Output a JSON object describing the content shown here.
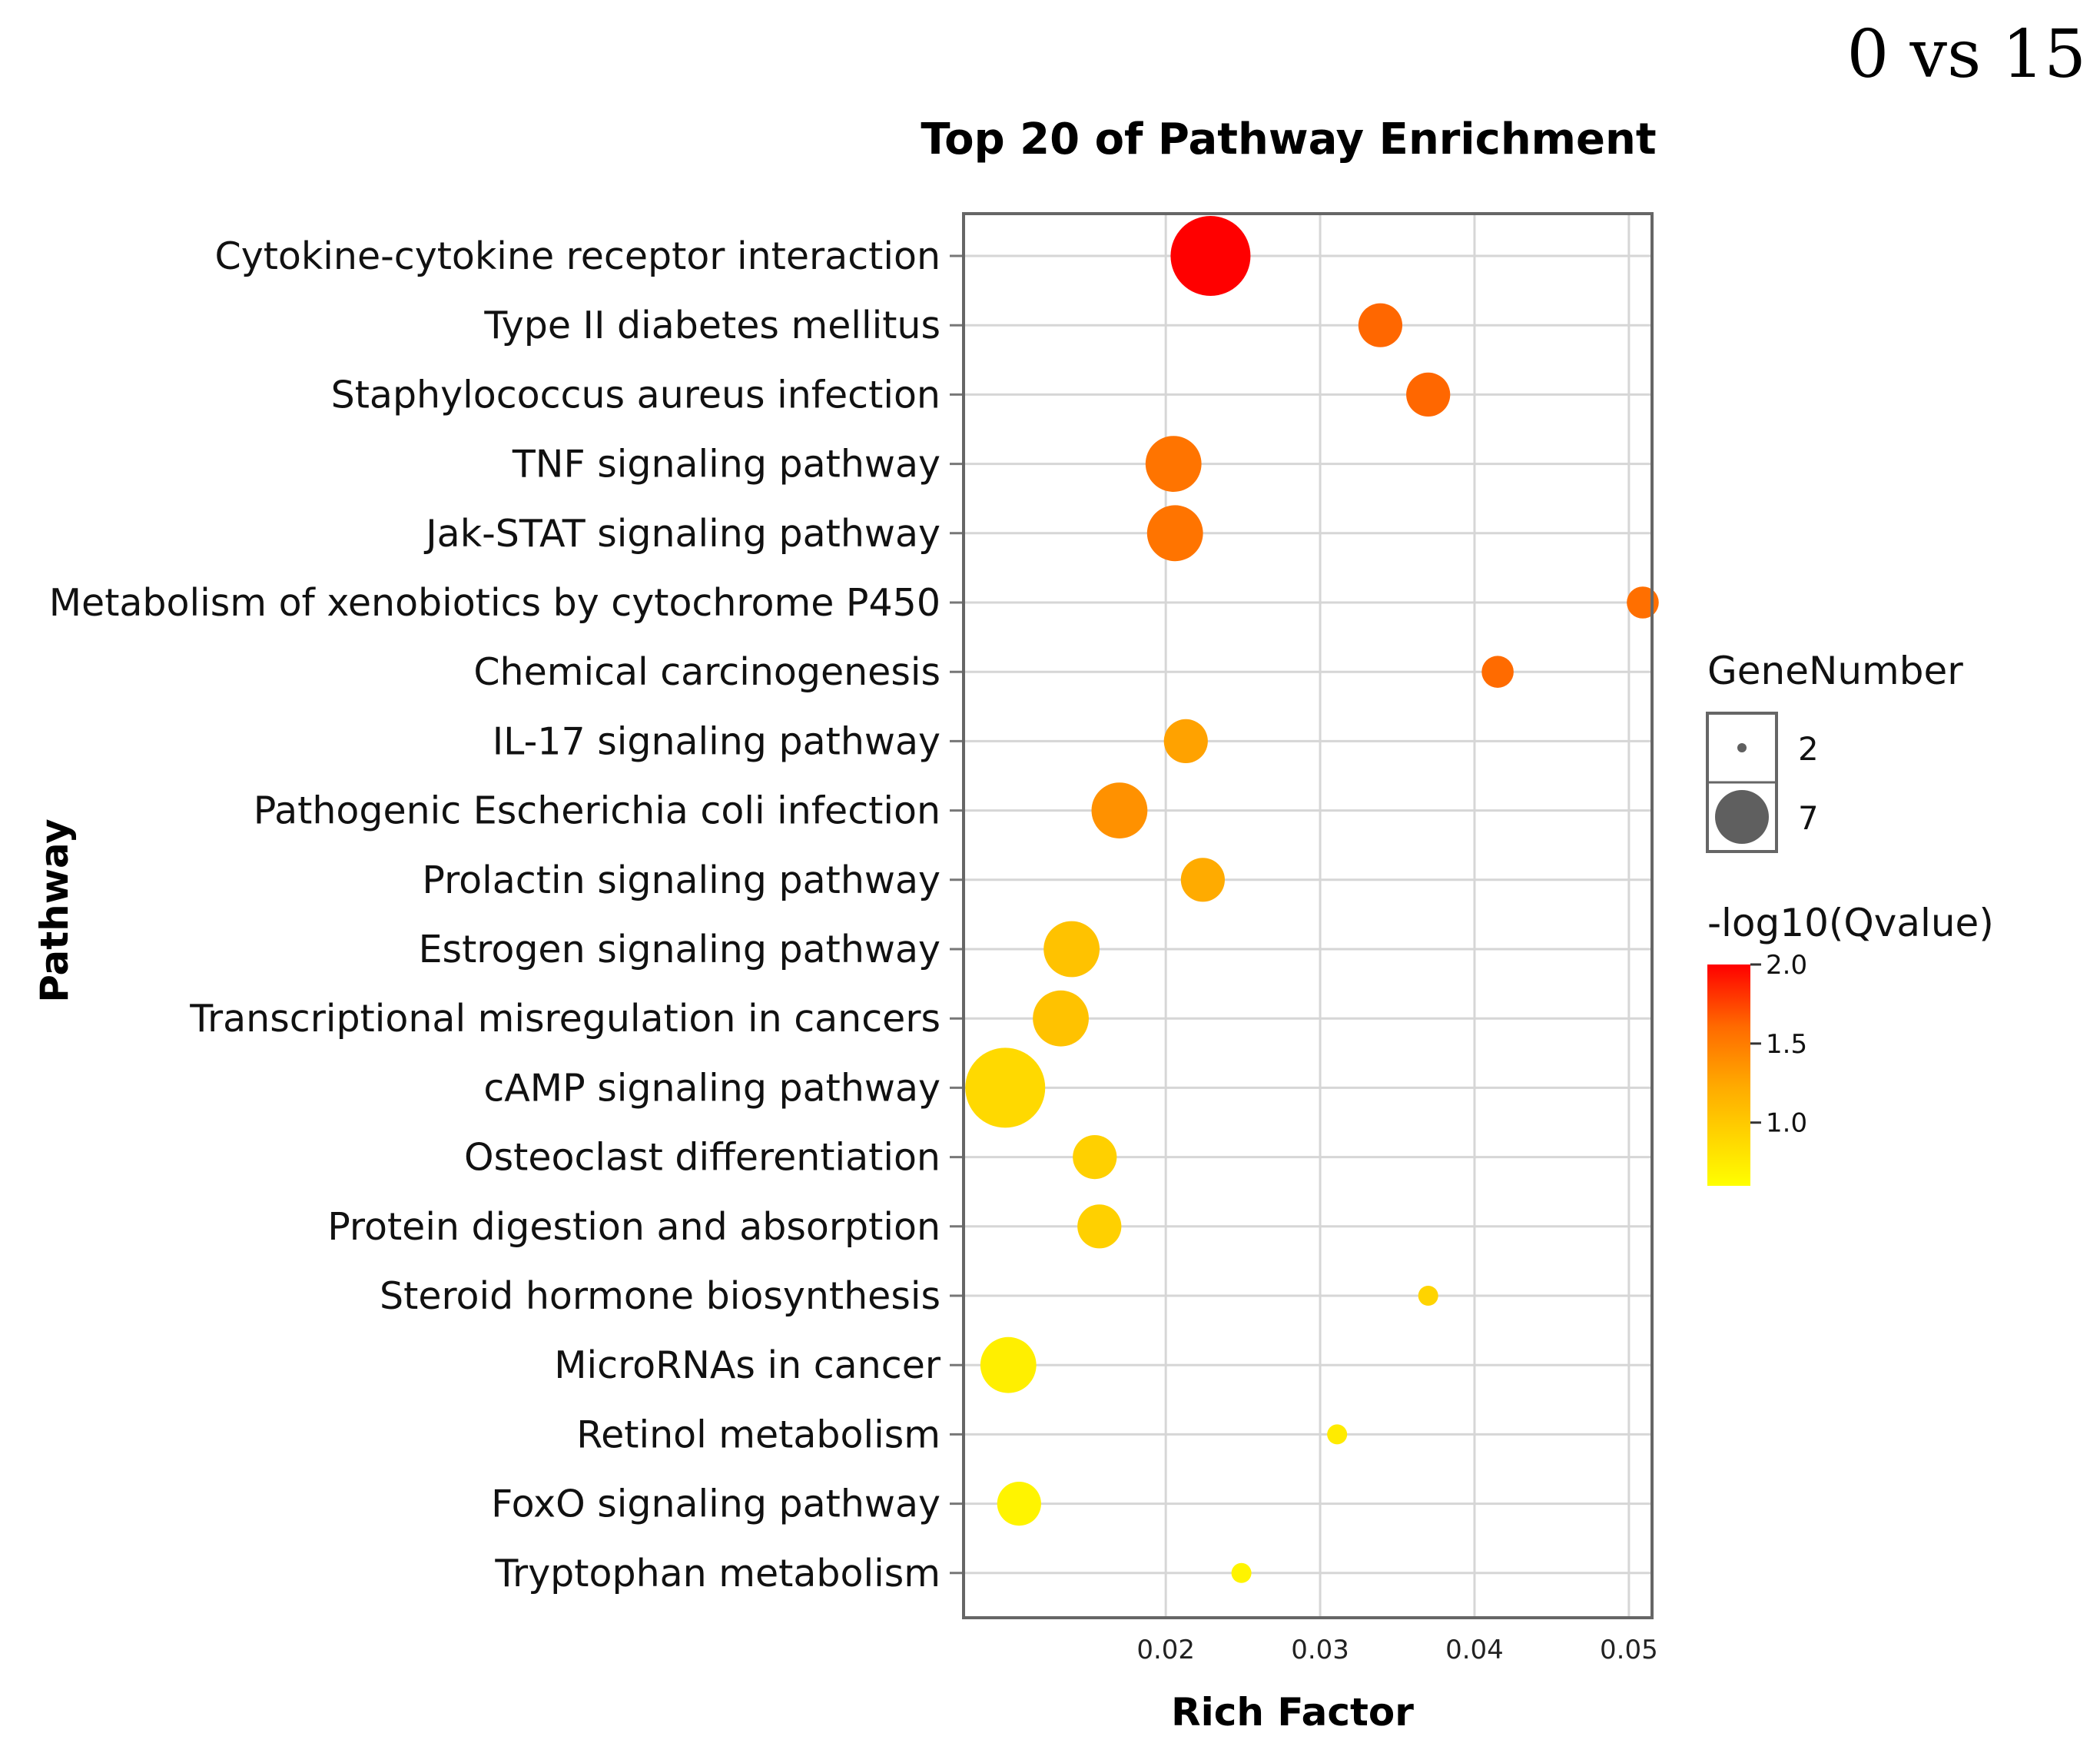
{
  "corner_label": "0 vs 15",
  "chart_data": {
    "type": "scatter",
    "title": "Top 20 of Pathway Enrichment",
    "xlabel": "Rich Factor",
    "ylabel": "Pathway",
    "xlim": [
      0.0069,
      0.0515
    ],
    "xticks": [
      0.02,
      0.03,
      0.04,
      0.05
    ],
    "xtick_labels": [
      "0.02",
      "0.03",
      "0.04",
      "0.05"
    ],
    "grid": true,
    "categories": [
      "Cytokine-cytokine receptor interaction",
      "Type II diabetes mellitus",
      "Staphylococcus aureus infection",
      "TNF signaling pathway",
      "Jak-STAT signaling pathway",
      "Metabolism of xenobiotics by cytochrome P450",
      "Chemical carcinogenesis",
      "IL-17 signaling pathway",
      "Pathogenic Escherichia coli infection",
      "Prolactin signaling pathway",
      "Estrogen signaling pathway",
      "Transcriptional misregulation in cancers",
      "cAMP signaling pathway",
      "Osteoclast differentiation",
      "Protein digestion and absorption",
      "Steroid hormone biosynthesis",
      "MicroRNAs in cancer",
      "Retinol metabolism",
      "FoxO signaling pathway",
      "Tryptophan metabolism"
    ],
    "rich_factor": [
      0.0229,
      0.0339,
      0.037,
      0.0205,
      0.0206,
      0.0509,
      0.0415,
      0.0213,
      0.017,
      0.0224,
      0.0139,
      0.0132,
      0.0096,
      0.0154,
      0.0157,
      0.037,
      0.0098,
      0.0311,
      0.0105,
      0.0249
    ],
    "gene_number": [
      7,
      4,
      4,
      5,
      5,
      3,
      3,
      4,
      5,
      4,
      5,
      5,
      7,
      4,
      4,
      2,
      5,
      2,
      4,
      2
    ],
    "neg_log10_qvalue": [
      2.0,
      1.62,
      1.62,
      1.55,
      1.55,
      1.58,
      1.6,
      1.28,
      1.38,
      1.22,
      1.05,
      1.05,
      0.88,
      0.95,
      0.95,
      0.92,
      0.72,
      0.75,
      0.68,
      0.68
    ],
    "size_legend": {
      "title": "GeneNumber",
      "entries": [
        {
          "label": "2",
          "value": 2
        },
        {
          "label": "7",
          "value": 7
        }
      ]
    },
    "color_legend": {
      "title": "-log10(Qvalue)",
      "min": 0.6,
      "max": 2.0,
      "ticks": [
        2.0,
        1.5,
        1.0
      ],
      "tick_labels": [
        "2.0",
        "1.5",
        "1.0"
      ],
      "color_low": "#ffff00",
      "color_high": "#ff0000"
    }
  }
}
